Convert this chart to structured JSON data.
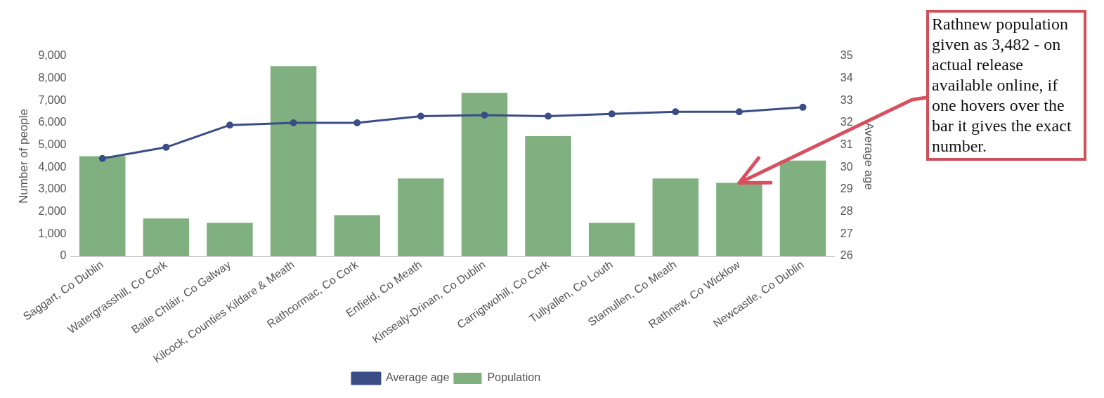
{
  "chart_data": {
    "type": "bar",
    "categories": [
      "Saggart, Co Dublin",
      "Watergrasshill, Co Cork",
      "Baile Chláir, Co Galway",
      "Kilcock, Counties Kildare & Meath",
      "Rathcormac, Co Cork",
      "Enfield, Co Meath",
      "Kinsealy-Drinan, Co Dublin",
      "Carrigtwohill, Co Cork",
      "Tullyallen, Co Louth",
      "Stamullen, Co Meath",
      "Rathnew, Co Wicklow",
      "Newcastle, Co Dublin"
    ],
    "series": [
      {
        "name": "Average age",
        "type": "line",
        "axis": "y2",
        "color": "#3b4d86",
        "values": [
          30.4,
          30.9,
          31.9,
          32.0,
          32.0,
          32.3,
          32.35,
          32.3,
          32.4,
          32.5,
          32.5,
          32.7
        ]
      },
      {
        "name": "Population",
        "color": "#80b080",
        "values": [
          4500,
          1700,
          1500,
          8550,
          1850,
          3500,
          7350,
          5400,
          1500,
          3500,
          3300,
          4300
        ]
      }
    ],
    "ylabel": "Number of people",
    "y2label": "Average age",
    "ylim": [
      0,
      9000
    ],
    "yticks": [
      0,
      {
        "value": 1000,
        "label": "1,000"
      },
      {
        "value": 2000,
        "label": "2,000"
      },
      {
        "value": 3000,
        "label": "3,000"
      },
      {
        "value": 4000,
        "label": "4,000"
      },
      {
        "value": 5000,
        "label": "5,000"
      },
      {
        "value": 6000,
        "label": "6,000"
      },
      {
        "value": 7000,
        "label": "7,000"
      },
      {
        "value": 8000,
        "label": "8,000"
      },
      {
        "value": 9000,
        "label": "9,000"
      }
    ],
    "y2lim": [
      26,
      35
    ],
    "y2ticks": [
      26,
      27,
      28,
      29,
      30,
      31,
      32,
      33,
      34,
      35
    ],
    "grid": false,
    "legend": "bottom",
    "marker": "circle",
    "line_style": "solid",
    "annotations": [
      {
        "text": "Rathnew population given as 3,482 - on actual release available online, if one hovers over the bar it gives the exact number.",
        "x": "Rathnew, Co Wicklow",
        "y": 3300
      }
    ]
  }
}
